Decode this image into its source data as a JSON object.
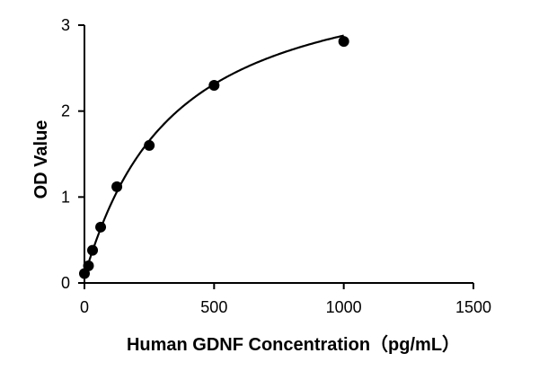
{
  "chart_data": {
    "type": "scatter",
    "title": "",
    "xlabel": "Human GDNF Concentration（pg/mL）",
    "ylabel": "OD Value",
    "xlim": [
      0,
      1500
    ],
    "ylim": [
      0,
      3
    ],
    "xticks": [
      0,
      500,
      1000,
      1500
    ],
    "yticks": [
      0,
      1,
      2,
      3
    ],
    "grid": false,
    "legend": "none",
    "series": [
      {
        "x": [
          0,
          15.6,
          31.25,
          62.5,
          125,
          250,
          500,
          1000
        ],
        "y": [
          0.11,
          0.2,
          0.38,
          0.65,
          1.12,
          1.6,
          2.3,
          2.81
        ],
        "color": "#000000"
      }
    ],
    "fit_curve": {
      "type": "four-parameter logistic",
      "bottom": 0.09,
      "top": 3.75,
      "ec50": 330,
      "hill": 1.05,
      "x_range": [
        0,
        1000
      ]
    }
  }
}
